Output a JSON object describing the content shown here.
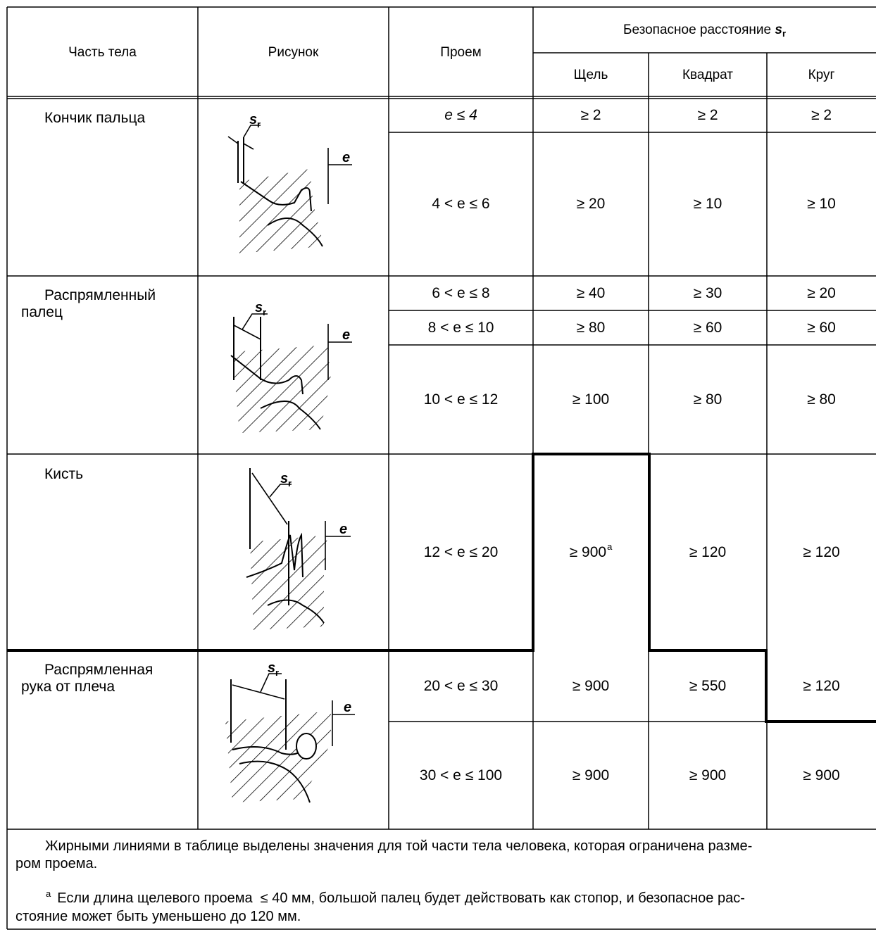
{
  "header": {
    "body_part": "Часть тела",
    "drawing": "Рисунок",
    "opening": "Проем",
    "safe_distance_prefix": "Безопасное расстояние ",
    "safe_distance_symbol": "s",
    "safe_distance_sub": "r",
    "slot": "Щель",
    "square": "Квадрат",
    "round": "Круг"
  },
  "body_parts": [
    {
      "line1": "Кончик пальца",
      "line2": ""
    },
    {
      "line1": "Распрямленный",
      "line2": "палец"
    },
    {
      "line1": "Кисть",
      "line2": ""
    },
    {
      "line1": "Распрямленная",
      "line2": "рука от плеча"
    }
  ],
  "figure_labels": {
    "s": "s",
    "sub": "r",
    "e": "e"
  },
  "rows": [
    {
      "opening": "e ≤ 4",
      "slot": "≥ 2",
      "square": "≥ 2",
      "round": "≥ 2"
    },
    {
      "opening": "4 < e ≤ 6",
      "slot": "≥ 20",
      "square": "≥ 10",
      "round": "≥ 10"
    },
    {
      "opening": "6 < e ≤ 8",
      "slot": "≥ 40",
      "square": "≥ 30",
      "round": "≥ 20"
    },
    {
      "opening": "8 < e ≤ 10",
      "slot": "≥ 80",
      "square": "≥ 60",
      "round": "≥ 60"
    },
    {
      "opening": "10 < e ≤ 12",
      "slot": "≥ 100",
      "square": "≥ 80",
      "round": "≥ 80"
    },
    {
      "opening": "12 < e ≤ 20",
      "slot": "≥ 900",
      "slot_footnote": "a",
      "square": "≥ 120",
      "round": "≥ 120"
    },
    {
      "opening": "20 < e ≤ 30",
      "slot": "≥ 900",
      "square": "≥ 550",
      "round": "≥ 120"
    },
    {
      "opening": "30 < e ≤ 100",
      "slot": "≥ 900",
      "square": "≥ 900",
      "round": "≥ 900"
    }
  ],
  "notes": {
    "bold_lines_l1": "Жирными линиями в таблице выделены значения для той части тела человека, которая ограничена разме-",
    "bold_lines_l2": "ром проема.",
    "footnote_marker": "a",
    "footnote_l1": "Если длина щелевого проема  ≤ 40 мм, большой палец будет действовать как стопор, и безопасное рас-",
    "footnote_l2": "стояние может быть уменьшено до 120 мм."
  }
}
